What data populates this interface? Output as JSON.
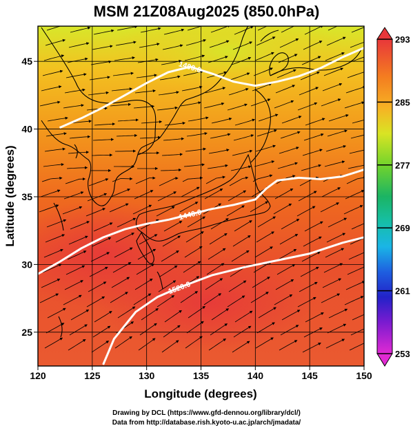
{
  "title": "MSM 21Z08Aug2025 (850.0hPa)",
  "xlabel": "Longitude (degrees)",
  "ylabel": "Latitude  (degrees)",
  "x_ticks": [
    "120",
    "125",
    "130",
    "135",
    "140",
    "145",
    "150"
  ],
  "y_ticks": [
    "25",
    "30",
    "35",
    "40",
    "45"
  ],
  "colorbar_ticks": [
    "293",
    "285",
    "277",
    "269",
    "261",
    "253"
  ],
  "contour_labels": [
    "1440.0",
    "1520.0",
    "1400.0"
  ],
  "credits": {
    "line1": "Drawing by DCL (https://www.gfd-dennou.org/library/dcl/)",
    "line2": "Data from http://database.rish.kyoto-u.ac.jp/arch/jmadata/"
  },
  "chart_data": {
    "type": "heatmap",
    "field": "temperature with wind streamlines and geopotential height contours",
    "xlim": [
      120,
      150
    ],
    "ylim": [
      22.5,
      47.6
    ],
    "colorbar_range": [
      253,
      293
    ],
    "contours": [
      {
        "label": "1440.0",
        "points": [
          [
            120,
            29.3
          ],
          [
            122,
            30.2
          ],
          [
            124,
            31.2
          ],
          [
            126,
            32
          ],
          [
            128,
            32.6
          ],
          [
            130,
            33
          ],
          [
            132,
            33.3
          ],
          [
            134,
            33.7
          ],
          [
            136,
            34.1
          ],
          [
            138,
            34.4
          ],
          [
            140,
            34.8
          ],
          [
            141,
            35.6
          ],
          [
            142,
            36.2
          ],
          [
            144,
            36.4
          ],
          [
            146,
            36.3
          ],
          [
            148,
            36.5
          ],
          [
            150,
            37
          ]
        ]
      },
      {
        "label": "1520.0",
        "points": [
          [
            126,
            22.6
          ],
          [
            127,
            24.5
          ],
          [
            129,
            26.5
          ],
          [
            131,
            27.6
          ],
          [
            133,
            28.3
          ],
          [
            136,
            29.2
          ],
          [
            139,
            29.8
          ],
          [
            142,
            30.3
          ],
          [
            145,
            30.8
          ],
          [
            148,
            31.6
          ],
          [
            150,
            32
          ]
        ]
      },
      {
        "label": "1400.0",
        "points": [
          [
            122,
            40.1
          ],
          [
            124,
            40.8
          ],
          [
            126,
            41.6
          ],
          [
            128,
            42.5
          ],
          [
            130,
            43.4
          ],
          [
            132,
            44.2
          ],
          [
            134,
            44.6
          ],
          [
            136,
            44.1
          ],
          [
            138,
            43.5
          ],
          [
            140,
            43.2
          ],
          [
            142,
            43.5
          ],
          [
            144,
            43.9
          ],
          [
            146,
            44.5
          ],
          [
            148,
            45.3
          ],
          [
            150,
            46
          ]
        ]
      }
    ]
  }
}
